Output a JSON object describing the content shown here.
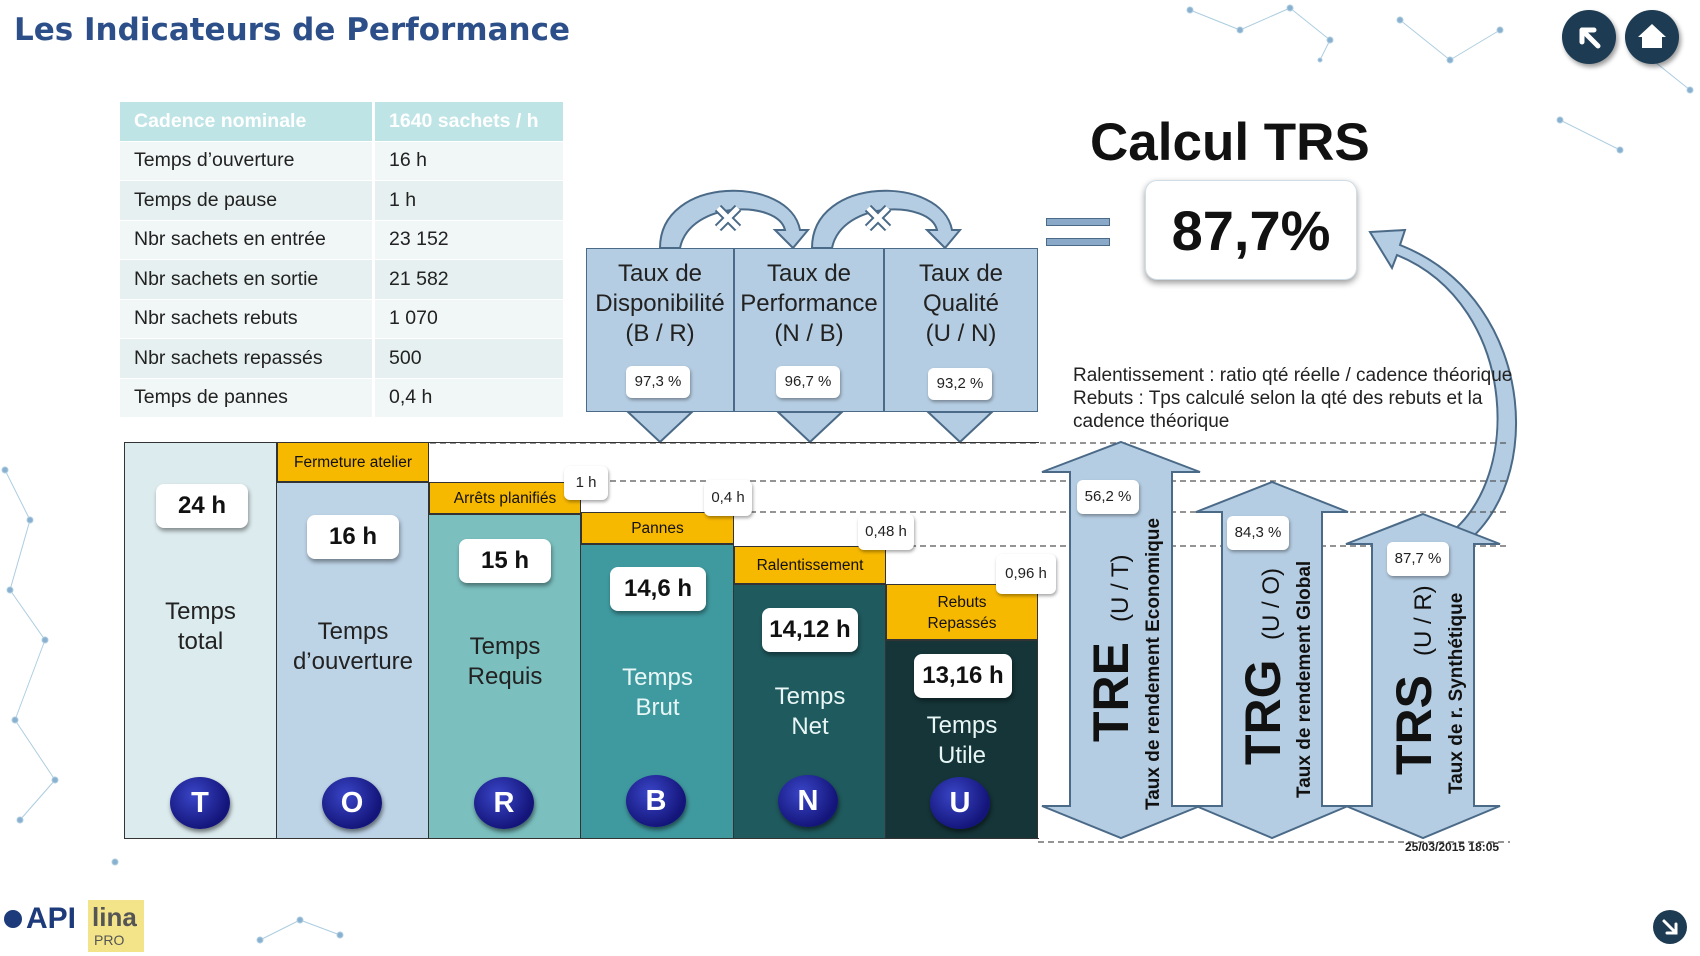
{
  "page": {
    "title": "Les Indicateurs de Performance"
  },
  "params": {
    "header": {
      "label": "Cadence nominale",
      "value": "1640 sachets / h"
    },
    "rows": [
      {
        "label": "Temps d’ouverture",
        "value": "16 h"
      },
      {
        "label": "Temps de pause",
        "value": "1 h"
      },
      {
        "label": "Nbr sachets en entrée",
        "value": "23 152"
      },
      {
        "label": "Nbr sachets en sortie",
        "value": "21 582"
      },
      {
        "label": "Nbr sachets rebuts",
        "value": "1 070"
      },
      {
        "label": "Nbr sachets repassés",
        "value": "500"
      },
      {
        "label": "Temps de pannes",
        "value": "0,4 h"
      }
    ]
  },
  "calc": {
    "title": "Calcul TRS",
    "result": "87,7%"
  },
  "rates": [
    {
      "line1": "Taux  de",
      "line2": "Disponibilité",
      "line3": "(B / R)",
      "value": "97,3  %"
    },
    {
      "line1": "Taux  de",
      "line2": "Performance",
      "line3": "(N / B)",
      "value": "96,7  %"
    },
    {
      "line1": "Taux  de",
      "line2": "Qualité",
      "line3": "(U / N)",
      "value": "93,2  %"
    }
  ],
  "notes": {
    "line1": "Ralentissement : ratio qté réelle / cadence théorique",
    "line2": "Rebuts : Tps calculé selon la qté des rebuts et la",
    "line3": "cadence théorique"
  },
  "columns": [
    {
      "name1": "Temps",
      "name2": "total",
      "value": "24 h",
      "letter": "T",
      "head": "",
      "head2": "",
      "loss": "",
      "color": "#dcebee"
    },
    {
      "name1": "Temps",
      "name2": "d’ouverture",
      "value": "16 h",
      "letter": "O",
      "head": "Fermeture   atelier",
      "head2": "",
      "loss": "",
      "color": "#bdd3e6"
    },
    {
      "name1": "Temps",
      "name2": "Requis",
      "value": "15 h",
      "letter": "R",
      "head": "Arrêts planifiés",
      "head2": "",
      "loss": "1 h",
      "color": "#7bbfbf"
    },
    {
      "name1": "Temps",
      "name2": "Brut",
      "value": "14,6 h",
      "letter": "B",
      "head": "Pannes",
      "head2": "",
      "loss": "0,4 h",
      "color": "#3f9aa0"
    },
    {
      "name1": "Temps",
      "name2": "Net",
      "value": "14,12 h",
      "letter": "N",
      "head": "Ralentissement",
      "head2": "",
      "loss": "0,48 h",
      "color": "#1f5a5e"
    },
    {
      "name1": "Temps",
      "name2": "Utile",
      "value": "13,16 h",
      "letter": "U",
      "head": "Rebuts",
      "head2": "Repassés",
      "loss": "0,96 h",
      "color": "#153538"
    }
  ],
  "indicators": [
    {
      "code": "TRE",
      "ratio": "(U / T)",
      "desc": "Taux de rendement Economique",
      "value": "56,2 %"
    },
    {
      "code": "TRG",
      "ratio": "(U / O)",
      "desc": "Taux de rendement Global",
      "value": "84,3 %"
    },
    {
      "code": "TRS",
      "ratio": "(U / R)",
      "desc": "Taux de r. Synthétique",
      "value": "87,7 %"
    }
  ],
  "timestamp": "25/03/2015 18:05",
  "logos": {
    "api": "API",
    "lina": "lina",
    "pro": "PRO"
  },
  "colors": {
    "title": "#2c4f8a",
    "rate_box": "#b5cde2",
    "head_yellow": "#f7b800",
    "letter_blue": "#14157a",
    "nav": "#1d3b52"
  }
}
